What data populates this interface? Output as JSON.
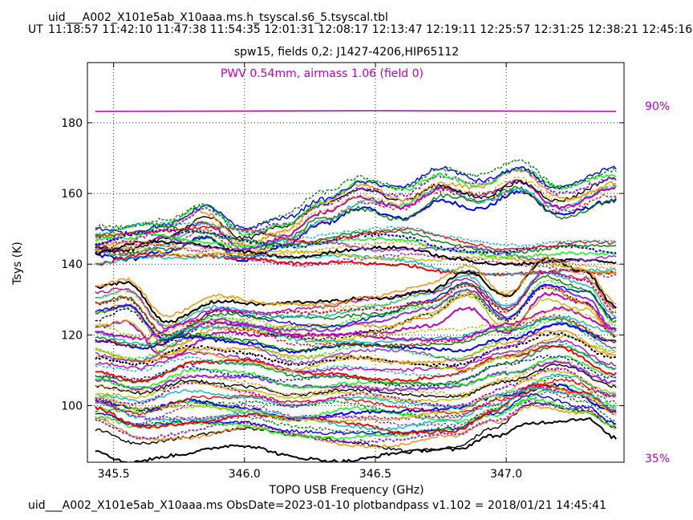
{
  "header": {
    "table_name": "uid___A002_X101e5ab_X10aaa.ms.h_tsyscal.s6_5.tsyscal.tbl",
    "ut_label": "UT",
    "ut_times": [
      "11:18:57",
      "11:42:10",
      "11:47:38",
      "11:54:35",
      "12:01:31",
      "12:08:17",
      "12:13:47",
      "12:19:11",
      "12:25:57",
      "12:31:25",
      "12:38:21",
      "12:45:16"
    ]
  },
  "annotations": {
    "pwv": "PWV 0.54mm, airmass 1.06 (field 0)",
    "pct_high": "90%",
    "pct_low": "35%"
  },
  "footer": "uid___A002_X101e5ab_X10aaa.ms  ObsDate=2023-01-10   plotbandpass v1.102 = 2018/01/21 14:45:41",
  "colors": {
    "annotation": "#c000c0",
    "series_palette": [
      "#0000ff",
      "#008000",
      "#ff0000",
      "#00bfbf",
      "#bf00bf",
      "#bfbf00",
      "#000000",
      "#ff8c00",
      "#8a2be2",
      "#00ff00"
    ]
  },
  "chart_data": {
    "type": "line",
    "title": "spw15,  fields 0,2: J1427-4206,HIP65112",
    "xlabel": "TOPO USB Frequency (GHz)",
    "ylabel": "Tsys (K)",
    "xlim": [
      345.4,
      347.45
    ],
    "ylim": [
      84,
      197
    ],
    "xticks": [
      345.5,
      346.0,
      346.5,
      347.0
    ],
    "xtick_labels": [
      "345.5",
      "346.0",
      "346.5",
      "347.0"
    ],
    "yticks": [
      100,
      120,
      140,
      160,
      180
    ],
    "ytick_labels": [
      "100",
      "120",
      "140",
      "160",
      "180"
    ],
    "grid": true,
    "x_range": [
      345.43,
      347.42
    ],
    "atm_transmission": {
      "x": [
        345.43,
        346.0,
        346.5,
        347.0,
        347.42
      ],
      "y": [
        183.2,
        183.3,
        183.4,
        183.3,
        183.2
      ]
    },
    "series_groups": [
      {
        "band": "upper",
        "count": 12,
        "x": [
          345.43,
          345.55,
          345.7,
          345.85,
          346.0,
          346.15,
          346.3,
          346.45,
          346.6,
          346.75,
          346.9,
          347.05,
          347.2,
          347.42
        ],
        "base": [
          146,
          145,
          148,
          153,
          146,
          149,
          155,
          160,
          158,
          163,
          160,
          164,
          158,
          163
        ]
      },
      {
        "band": "middle",
        "count": 12,
        "x": [
          345.43,
          345.6,
          345.8,
          346.0,
          346.2,
          346.4,
          346.6,
          346.8,
          347.0,
          347.2,
          347.42
        ],
        "base": [
          145,
          147,
          146,
          145,
          144,
          145,
          145,
          143,
          142,
          142,
          141
        ]
      },
      {
        "band": "lower-mid",
        "count": 14,
        "x": [
          345.43,
          345.55,
          345.7,
          345.9,
          346.1,
          346.3,
          346.5,
          346.7,
          346.85,
          347.0,
          347.15,
          347.3,
          347.42
        ],
        "base": [
          128,
          130,
          120,
          126,
          124,
          124,
          126,
          129,
          134,
          126,
          136,
          133,
          124
        ]
      },
      {
        "band": "lower",
        "count": 28,
        "x": [
          345.43,
          345.6,
          345.8,
          346.0,
          346.2,
          346.4,
          346.6,
          346.8,
          347.0,
          347.2,
          347.42
        ],
        "base": [
          110,
          108,
          112,
          111,
          108,
          109,
          108,
          108,
          112,
          116,
          110
        ]
      },
      {
        "band": "bottom",
        "count": 10,
        "x": [
          345.43,
          345.6,
          345.8,
          346.0,
          346.2,
          346.4,
          346.6,
          346.8,
          346.95,
          347.1,
          347.3,
          347.42
        ],
        "base": [
          98,
          94,
          95,
          96,
          94,
          93,
          92,
          93,
          98,
          104,
          101,
          96
        ]
      },
      {
        "band": "lowest",
        "count": 1,
        "x": [
          345.43,
          345.55,
          345.75,
          346.0,
          346.2,
          346.4,
          346.6,
          346.8,
          346.95,
          347.1,
          347.3,
          347.42
        ],
        "base": [
          88,
          85,
          86,
          88,
          86,
          85,
          86,
          87,
          92,
          96,
          96,
          90
        ]
      }
    ]
  }
}
